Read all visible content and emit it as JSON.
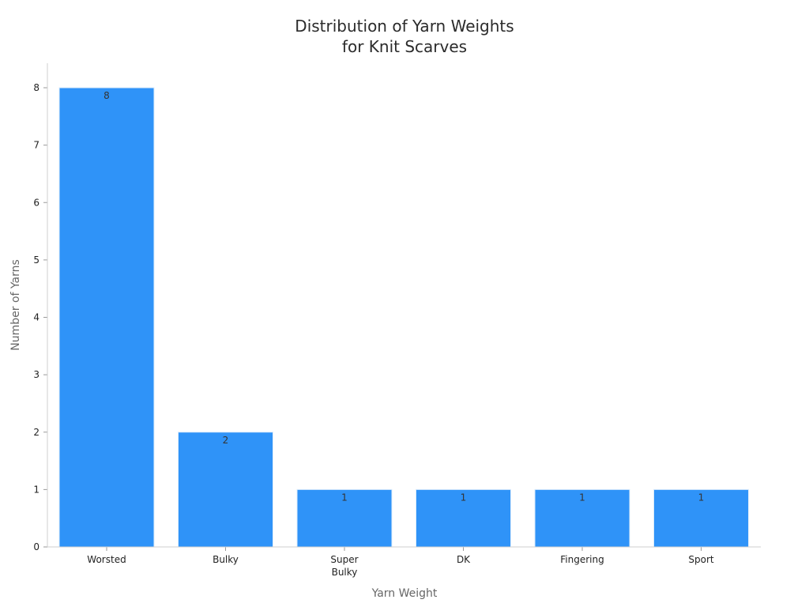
{
  "chart_data": {
    "type": "bar",
    "title_lines": [
      "Distribution of Yarn Weights",
      "for Knit Scarves"
    ],
    "xlabel": "Yarn Weight",
    "ylabel": "Number of Yarns",
    "categories": [
      [
        "Worsted"
      ],
      [
        "Bulky"
      ],
      [
        "Super",
        "Bulky"
      ],
      [
        "DK"
      ],
      [
        "Fingering"
      ],
      [
        "Sport"
      ]
    ],
    "values": [
      8,
      2,
      1,
      1,
      1,
      1
    ],
    "y_ticks": [
      0,
      1,
      2,
      3,
      4,
      5,
      6,
      7,
      8
    ],
    "ylim": [
      0,
      8.4
    ],
    "grid": false,
    "legend": "none",
    "bar_color": "#2f93f8",
    "bar_edge_color": "#dcecfb"
  }
}
